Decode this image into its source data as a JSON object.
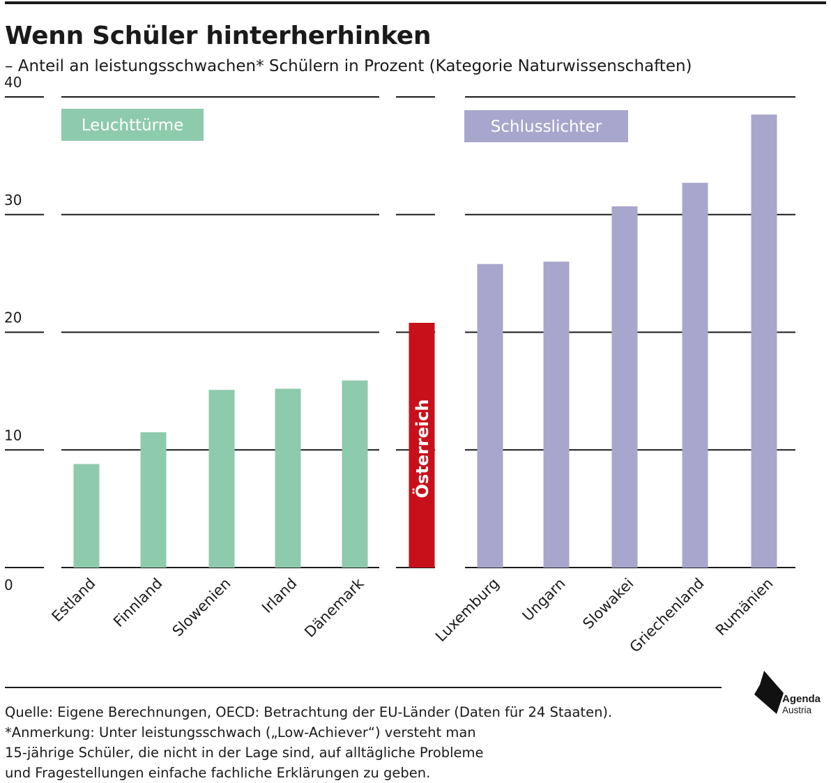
{
  "title": "Wenn Schüler hinterherhinken",
  "subtitle": "– Anteil an leistungsschwachen* Schülern in Prozent (Kategorie Naturwissenschaften)",
  "colors": {
    "leuchttuerme": "#8ecaac",
    "oesterreich": "#c8101a",
    "schlusslichter": "#a8a6cc",
    "grid": "#1a1a1a"
  },
  "chart_data": {
    "type": "bar",
    "ylim": [
      0,
      40
    ],
    "yticks": [
      0,
      10,
      20,
      30,
      40
    ],
    "grid": true,
    "groups": [
      {
        "name": "Leuchttürme",
        "color": "#8ecaac",
        "categories": [
          "Estland",
          "Finnland",
          "Slowenien",
          "Irland",
          "Dänemark"
        ],
        "values": [
          8.8,
          11.5,
          15.1,
          15.2,
          15.9
        ]
      },
      {
        "name": "",
        "color": "#c8101a",
        "categories": [
          "Österreich"
        ],
        "values": [
          20.8
        ]
      },
      {
        "name": "Schlusslichter",
        "color": "#a8a6cc",
        "categories": [
          "Luxemburg",
          "Ungarn",
          "Slowakei",
          "Griechenland",
          "Rumänien"
        ],
        "values": [
          25.8,
          26.0,
          30.7,
          32.7,
          38.5
        ]
      }
    ]
  },
  "footnote": {
    "source": "Quelle: Eigene Berechnungen, OECD: Betrachtung der EU-Länder (Daten für 24 Staaten).",
    "note_line1": "*Anmerkung: Unter leistungsschwach („Low-Achiever“) versteht man",
    "note_line2": "15-jährige Schüler, die nicht in der Lage sind, auf alltägliche Probleme",
    "note_line3": "und Fragestellungen einfache fachliche Erklärungen zu geben."
  },
  "logo": {
    "name": "Agenda",
    "sub": "Austria",
    "icon": "agenda-austria-logo-icon"
  }
}
